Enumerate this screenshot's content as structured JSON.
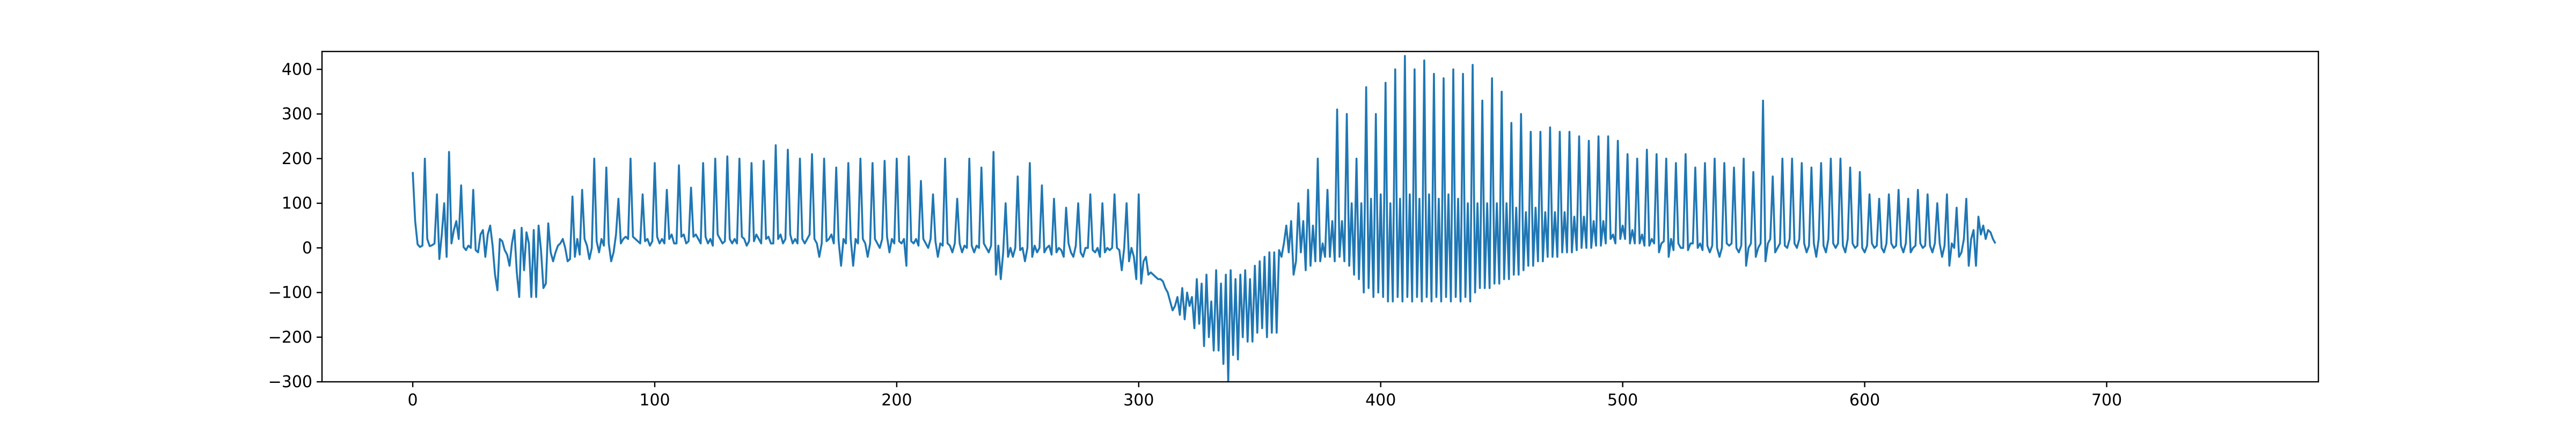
{
  "chart_data": {
    "type": "line",
    "title": "",
    "xlabel": "",
    "ylabel": "",
    "xlim": [
      -37.5,
      787.5
    ],
    "ylim": [
      -300,
      440
    ],
    "grid": false,
    "legend": null,
    "x_ticks": [
      0,
      100,
      200,
      300,
      400,
      500,
      600,
      700
    ],
    "y_ticks": [
      -300,
      -200,
      -100,
      0,
      100,
      200,
      300,
      400
    ],
    "x_tick_labels": [
      "0",
      "100",
      "200",
      "300",
      "400",
      "500",
      "600",
      "700"
    ],
    "y_tick_labels": [
      "−300",
      "−200",
      "−100",
      "0",
      "100",
      "200",
      "300",
      "400"
    ],
    "series": [
      {
        "color": "#1f77b4",
        "x_start": 0,
        "x_step": 1,
        "values": [
          170,
          60,
          8,
          2,
          5,
          200,
          20,
          4,
          6,
          10,
          120,
          -25,
          30,
          100,
          -20,
          215,
          10,
          40,
          60,
          20,
          140,
          2,
          -5,
          5,
          0,
          130,
          -5,
          -10,
          30,
          40,
          -20,
          30,
          50,
          5,
          -60,
          -95,
          20,
          15,
          -5,
          -15,
          -40,
          10,
          40,
          -55,
          -110,
          45,
          -50,
          35,
          10,
          -110,
          40,
          -110,
          50,
          -5,
          -90,
          -80,
          55,
          -10,
          -30,
          -10,
          5,
          10,
          20,
          0,
          -30,
          -25,
          115,
          -20,
          20,
          -15,
          130,
          20,
          5,
          -25,
          0,
          200,
          15,
          -10,
          20,
          5,
          180,
          10,
          -30,
          -10,
          30,
          110,
          10,
          20,
          25,
          20,
          200,
          25,
          20,
          15,
          10,
          120,
          15,
          20,
          5,
          15,
          190,
          25,
          10,
          20,
          10,
          130,
          20,
          30,
          10,
          10,
          185,
          25,
          30,
          10,
          15,
          135,
          25,
          30,
          20,
          10,
          190,
          25,
          10,
          20,
          5,
          200,
          30,
          20,
          10,
          15,
          205,
          20,
          10,
          20,
          10,
          200,
          25,
          20,
          5,
          15,
          190,
          15,
          30,
          20,
          10,
          195,
          20,
          25,
          10,
          10,
          230,
          20,
          30,
          10,
          20,
          220,
          30,
          10,
          20,
          10,
          200,
          20,
          10,
          20,
          30,
          210,
          20,
          10,
          -20,
          10,
          200,
          15,
          20,
          30,
          10,
          180,
          15,
          -40,
          20,
          10,
          190,
          20,
          -40,
          20,
          10,
          200,
          20,
          10,
          -20,
          10,
          190,
          20,
          10,
          0,
          20,
          195,
          25,
          -10,
          20,
          10,
          200,
          15,
          10,
          20,
          -40,
          205,
          15,
          10,
          20,
          5,
          150,
          20,
          10,
          0,
          20,
          120,
          15,
          -20,
          10,
          5,
          200,
          10,
          5,
          -10,
          10,
          110,
          10,
          -10,
          5,
          0,
          200,
          5,
          -10,
          5,
          0,
          180,
          10,
          0,
          -10,
          5,
          215,
          -60,
          5,
          -70,
          -10,
          100,
          -20,
          0,
          -20,
          0,
          160,
          -5,
          0,
          -30,
          0,
          190,
          -20,
          5,
          -10,
          0,
          140,
          -10,
          0,
          5,
          -15,
          110,
          -10,
          0,
          -5,
          -20,
          90,
          10,
          -10,
          -20,
          5,
          100,
          -10,
          -20,
          0,
          0,
          120,
          -5,
          -10,
          0,
          -20,
          100,
          -10,
          0,
          -5,
          0,
          120,
          0,
          -5,
          -50,
          0,
          100,
          -30,
          0,
          -20,
          -70,
          120,
          -80,
          -30,
          -20,
          -60,
          -55,
          -60,
          -65,
          -70,
          -70,
          -75,
          -90,
          -100,
          -120,
          -140,
          -130,
          -110,
          -150,
          -90,
          -160,
          -100,
          -130,
          -110,
          -180,
          -70,
          -170,
          -80,
          -220,
          -60,
          -200,
          -120,
          -230,
          -50,
          -230,
          -80,
          -260,
          -60,
          -300,
          -50,
          -240,
          -70,
          -250,
          -60,
          -200,
          -50,
          -210,
          -70,
          -210,
          -40,
          -190,
          -30,
          -180,
          -20,
          -200,
          -10,
          -190,
          -10,
          -190,
          -5,
          -20,
          10,
          50,
          -10,
          60,
          -60,
          -30,
          100,
          -10,
          60,
          -50,
          130,
          -40,
          50,
          -30,
          200,
          -30,
          10,
          -20,
          130,
          -20,
          60,
          -30,
          310,
          -20,
          60,
          -30,
          300,
          -40,
          100,
          -60,
          200,
          -70,
          100,
          -100,
          360,
          -90,
          110,
          -110,
          300,
          -100,
          120,
          -110,
          370,
          -120,
          100,
          -120,
          400,
          -110,
          110,
          -120,
          430,
          -110,
          120,
          -120,
          400,
          -110,
          110,
          -120,
          420,
          -110,
          120,
          -120,
          390,
          -110,
          110,
          -120,
          380,
          -110,
          120,
          -120,
          400,
          -110,
          110,
          -120,
          390,
          -110,
          100,
          -120,
          410,
          -100,
          100,
          -90,
          330,
          -90,
          100,
          -90,
          380,
          -80,
          100,
          -80,
          350,
          -70,
          100,
          -70,
          280,
          -60,
          90,
          -60,
          300,
          -50,
          80,
          -40,
          260,
          -40,
          90,
          -30,
          260,
          -30,
          80,
          -20,
          270,
          -20,
          80,
          -20,
          260,
          -10,
          80,
          -10,
          260,
          -10,
          70,
          -5,
          250,
          0,
          70,
          0,
          240,
          0,
          60,
          5,
          250,
          5,
          60,
          10,
          250,
          20,
          30,
          10,
          240,
          20,
          50,
          20,
          210,
          10,
          40,
          10,
          200,
          10,
          30,
          5,
          220,
          5,
          20,
          10,
          210,
          -10,
          10,
          15,
          200,
          -20,
          20,
          -5,
          190,
          10,
          0,
          0,
          210,
          -5,
          10,
          10,
          180,
          0,
          10,
          -5,
          190,
          5,
          -10,
          5,
          200,
          0,
          -20,
          0,
          190,
          10,
          5,
          10,
          180,
          0,
          -10,
          5,
          200,
          -40,
          0,
          10,
          170,
          -20,
          0,
          10,
          330,
          -30,
          10,
          20,
          160,
          -10,
          0,
          10,
          200,
          5,
          0,
          20,
          200,
          10,
          0,
          20,
          190,
          10,
          -10,
          5,
          180,
          10,
          -20,
          20,
          190,
          5,
          -10,
          20,
          200,
          10,
          0,
          10,
          200,
          5,
          -10,
          20,
          180,
          10,
          0,
          5,
          170,
          0,
          -10,
          5,
          120,
          10,
          0,
          5,
          110,
          0,
          -10,
          10,
          120,
          10,
          0,
          5,
          130,
          5,
          -10,
          10,
          110,
          -10,
          0,
          5,
          130,
          10,
          0,
          5,
          120,
          5,
          -10,
          10,
          100,
          10,
          -20,
          5,
          120,
          -40,
          10,
          0,
          90,
          -20,
          -10,
          20,
          110,
          -40,
          20,
          40,
          -40,
          70,
          30,
          50,
          20,
          40,
          35,
          20,
          10
        ],
        "display_points_note": ""
      }
    ]
  }
}
